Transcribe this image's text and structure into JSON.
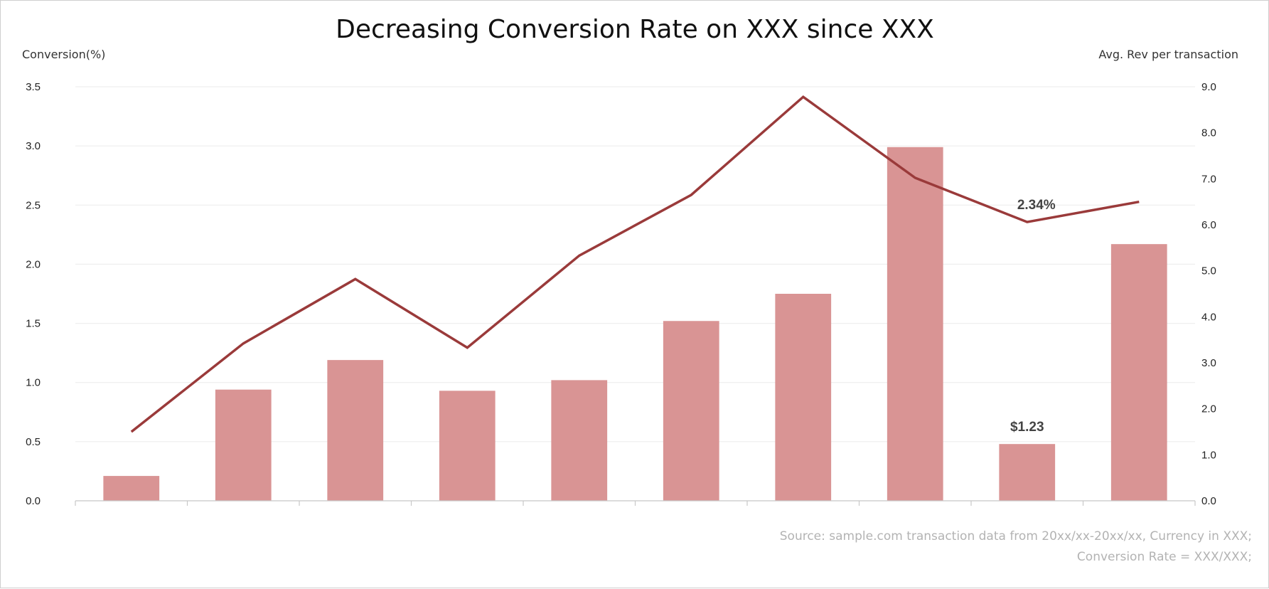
{
  "chart_data": {
    "type": "bar",
    "title": "Decreasing Conversion Rate on XXX since XXX",
    "ylabel": "Conversion(%)",
    "y2label": "Avg. Rev per transaction",
    "ylim": [
      0,
      3.5
    ],
    "y2lim": [
      0,
      9.0
    ],
    "yticks": [
      "0.0",
      "0.5",
      "1.0",
      "1.5",
      "2.0",
      "2.5",
      "3.0",
      "3.5"
    ],
    "y2ticks": [
      "0.0",
      "1.0",
      "2.0",
      "3.0",
      "4.0",
      "5.0",
      "6.0",
      "7.0",
      "8.0",
      "9.0"
    ],
    "categories": [
      "",
      "",
      "",
      "",
      "",
      "",
      "",
      "",
      "",
      ""
    ],
    "series": [
      {
        "type": "bar",
        "axis": "left",
        "color": "#d99494",
        "values": [
          0.21,
          0.94,
          1.19,
          0.93,
          1.02,
          1.52,
          1.75,
          2.99,
          0.48,
          2.17
        ]
      },
      {
        "type": "line",
        "axis": "right",
        "color": "#9a3a3a",
        "values": [
          1.5,
          3.42,
          4.82,
          3.33,
          5.33,
          6.65,
          8.78,
          7.02,
          6.06,
          6.5
        ]
      }
    ],
    "annotations": {
      "line_label": "2.34%",
      "bar_label": "$1.23"
    },
    "grid": true,
    "legend": "none"
  },
  "footer": {
    "source_line1": "Source: sample.com transaction data from 20xx/xx-20xx/xx, Currency in XXX;",
    "source_line2": "Conversion Rate = XXX/XXX;"
  }
}
